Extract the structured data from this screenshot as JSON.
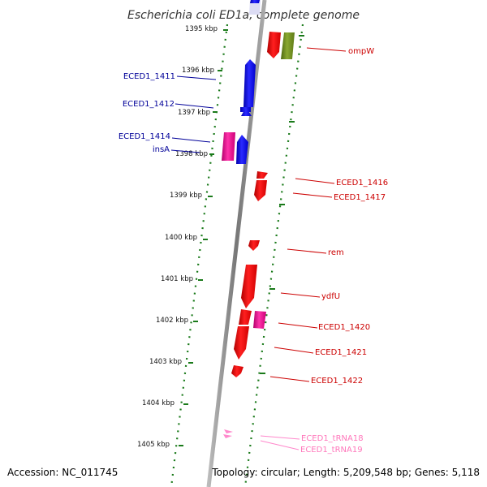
{
  "title": "Escherichia coli ED1a, complete genome",
  "footer": {
    "accession": "Accession: NC_011745",
    "summary": "Topology: circular; Length: 5,209,548 bp; Genes: 5,118"
  },
  "colors": {
    "backbone": "#888888",
    "ruler": "#1a7a1a",
    "cds_forward": "#0000ee",
    "cds_reverse": "#ee0000",
    "mobile_element": "#ee1199",
    "rRNA_like": "#6e8e1e",
    "tRNA": "#ff88cc",
    "label_left": "#000099",
    "label_right": "#cc0000",
    "label_trna": "#ff77bb"
  },
  "ticks": [
    "1395 kbp",
    "1396 kbp",
    "1397 kbp",
    "1398 kbp",
    "1399 kbp",
    "1400 kbp",
    "1401 kbp",
    "1402 kbp",
    "1403 kbp",
    "1404 kbp",
    "1405 kbp"
  ],
  "labels_left": [
    "ECED1_1411",
    "ECED1_1412",
    "ECED1_1414",
    "insA"
  ],
  "labels_right": [
    "ompW",
    "ECED1_1416",
    "ECED1_1417",
    "rem",
    "ydfU",
    "ECED1_1420",
    "ECED1_1421",
    "ECED1_1422"
  ],
  "labels_trna": [
    "ECED1_tRNA18",
    "ECED1_tRNA19"
  ]
}
